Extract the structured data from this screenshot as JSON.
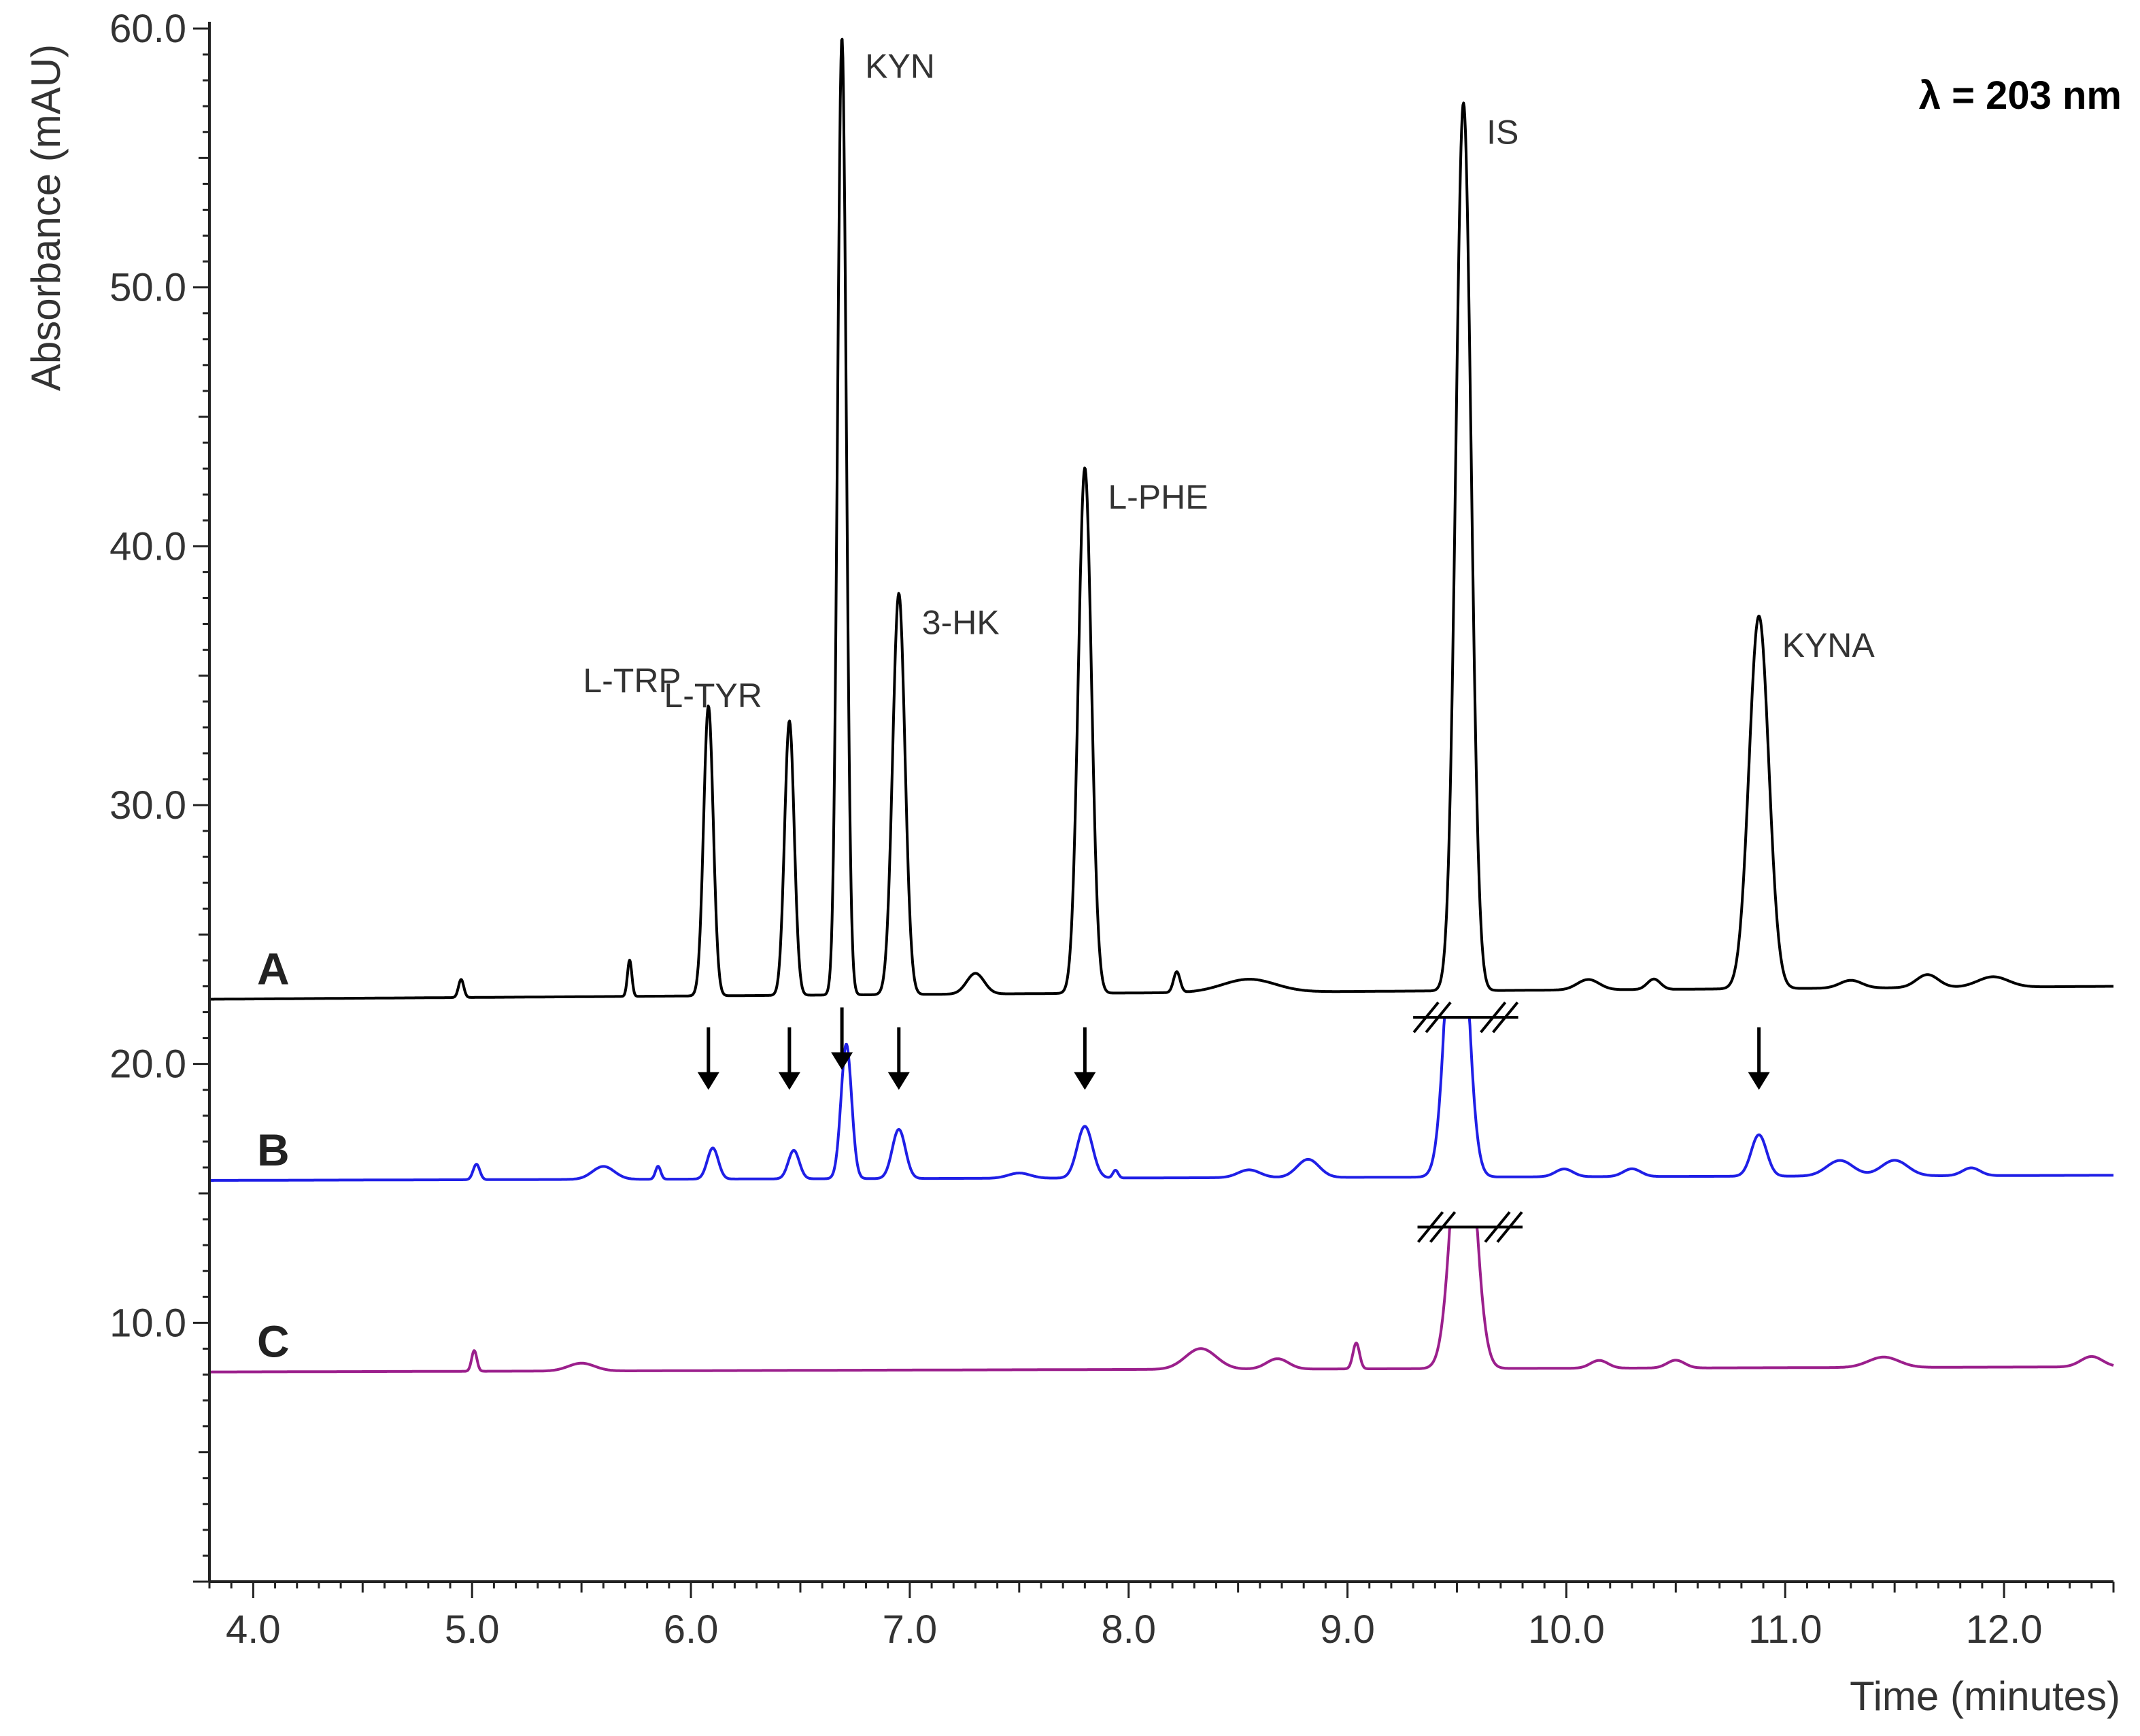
{
  "chart_data": {
    "type": "line",
    "title": "",
    "annotation": "λ = 203 nm",
    "xlabel": "Time (minutes)",
    "ylabel": "Absorbance (mAU)",
    "xlim": [
      3.8,
      12.5
    ],
    "ylim": [
      0,
      60
    ],
    "x_ticks": [
      4.0,
      5.0,
      6.0,
      7.0,
      8.0,
      9.0,
      10.0,
      11.0,
      12.0
    ],
    "x_tick_labels": [
      "4.0",
      "5.0",
      "6.0",
      "7.0",
      "8.0",
      "9.0",
      "10.0",
      "11.0",
      "12.0"
    ],
    "y_ticks": [
      10.0,
      20.0,
      30.0,
      40.0,
      50.0,
      60.0
    ],
    "y_tick_labels": [
      "10.0",
      "20.0",
      "30.0",
      "40.0",
      "50.0",
      "60.0"
    ],
    "grid": false,
    "series": [
      {
        "name": "A",
        "color": "#000000",
        "baseline_start": 22.5,
        "baseline_end": 23.0,
        "peaks": [
          {
            "x": 4.95,
            "h": 0.7,
            "w": 0.012
          },
          {
            "x": 5.72,
            "h": 1.4,
            "w": 0.01
          },
          {
            "x": 6.08,
            "h": 11.2,
            "w": 0.022
          },
          {
            "x": 6.45,
            "h": 10.6,
            "w": 0.022
          },
          {
            "x": 6.69,
            "h": 37.0,
            "w": 0.02
          },
          {
            "x": 6.95,
            "h": 15.5,
            "w": 0.028
          },
          {
            "x": 7.3,
            "h": 0.8,
            "w": 0.04
          },
          {
            "x": 7.8,
            "h": 20.3,
            "w": 0.03
          },
          {
            "x": 8.22,
            "h": 0.8,
            "w": 0.015
          },
          {
            "x": 8.55,
            "h": 0.5,
            "w": 0.12
          },
          {
            "x": 9.53,
            "h": 34.3,
            "w": 0.035
          },
          {
            "x": 10.1,
            "h": 0.4,
            "w": 0.05
          },
          {
            "x": 10.4,
            "h": 0.4,
            "w": 0.03
          },
          {
            "x": 10.88,
            "h": 14.4,
            "w": 0.045
          },
          {
            "x": 11.3,
            "h": 0.3,
            "w": 0.05
          },
          {
            "x": 11.65,
            "h": 0.5,
            "w": 0.05
          },
          {
            "x": 11.95,
            "h": 0.4,
            "w": 0.07
          }
        ]
      },
      {
        "name": "B",
        "color": "#1f1fe6",
        "baseline_start": 15.5,
        "baseline_end": 15.7,
        "clip_at": 21.8,
        "peaks": [
          {
            "x": 5.02,
            "h": 0.6,
            "w": 0.015
          },
          {
            "x": 5.6,
            "h": 0.5,
            "w": 0.05
          },
          {
            "x": 5.85,
            "h": 0.5,
            "w": 0.012
          },
          {
            "x": 6.1,
            "h": 1.2,
            "w": 0.025
          },
          {
            "x": 6.47,
            "h": 1.1,
            "w": 0.025
          },
          {
            "x": 6.71,
            "h": 5.2,
            "w": 0.024
          },
          {
            "x": 6.95,
            "h": 1.9,
            "w": 0.03
          },
          {
            "x": 7.5,
            "h": 0.2,
            "w": 0.05
          },
          {
            "x": 7.8,
            "h": 2.0,
            "w": 0.035
          },
          {
            "x": 7.94,
            "h": 0.3,
            "w": 0.012
          },
          {
            "x": 8.55,
            "h": 0.3,
            "w": 0.05
          },
          {
            "x": 8.82,
            "h": 0.7,
            "w": 0.05
          },
          {
            "x": 9.5,
            "h": 14.0,
            "w": 0.045
          },
          {
            "x": 9.99,
            "h": 0.3,
            "w": 0.04
          },
          {
            "x": 10.3,
            "h": 0.3,
            "w": 0.04
          },
          {
            "x": 10.88,
            "h": 1.6,
            "w": 0.035
          },
          {
            "x": 11.25,
            "h": 0.6,
            "w": 0.06
          },
          {
            "x": 11.5,
            "h": 0.6,
            "w": 0.06
          },
          {
            "x": 11.85,
            "h": 0.3,
            "w": 0.04
          }
        ]
      },
      {
        "name": "C",
        "color": "#9b1f8c",
        "baseline_start": 8.1,
        "baseline_end": 8.3,
        "clip_at": 13.7,
        "peaks": [
          {
            "x": 5.01,
            "h": 0.8,
            "w": 0.012
          },
          {
            "x": 5.5,
            "h": 0.3,
            "w": 0.06
          },
          {
            "x": 8.33,
            "h": 0.8,
            "w": 0.07
          },
          {
            "x": 8.68,
            "h": 0.4,
            "w": 0.05
          },
          {
            "x": 9.04,
            "h": 1.0,
            "w": 0.015
          },
          {
            "x": 9.53,
            "h": 12.0,
            "w": 0.05
          },
          {
            "x": 10.15,
            "h": 0.3,
            "w": 0.04
          },
          {
            "x": 10.5,
            "h": 0.3,
            "w": 0.04
          },
          {
            "x": 11.45,
            "h": 0.4,
            "w": 0.07
          },
          {
            "x": 12.4,
            "h": 0.4,
            "w": 0.05
          }
        ]
      }
    ],
    "peak_labels": [
      {
        "text": "L-TRP",
        "x": 6.08
      },
      {
        "text": "L-TYR",
        "x": 6.45
      },
      {
        "text": "KYN",
        "x": 6.69
      },
      {
        "text": "3-HK",
        "x": 6.95
      },
      {
        "text": "L-PHE",
        "x": 7.8
      },
      {
        "text": "IS",
        "x": 9.53
      },
      {
        "text": "KYNA",
        "x": 10.88
      }
    ],
    "arrows_at": [
      6.08,
      6.45,
      6.69,
      6.95,
      7.8,
      10.88
    ],
    "axis_breaks": [
      {
        "x_from": 9.3,
        "x_to": 9.78,
        "y": 21.8
      },
      {
        "x_from": 9.32,
        "x_to": 9.8,
        "y": 13.7
      }
    ]
  }
}
